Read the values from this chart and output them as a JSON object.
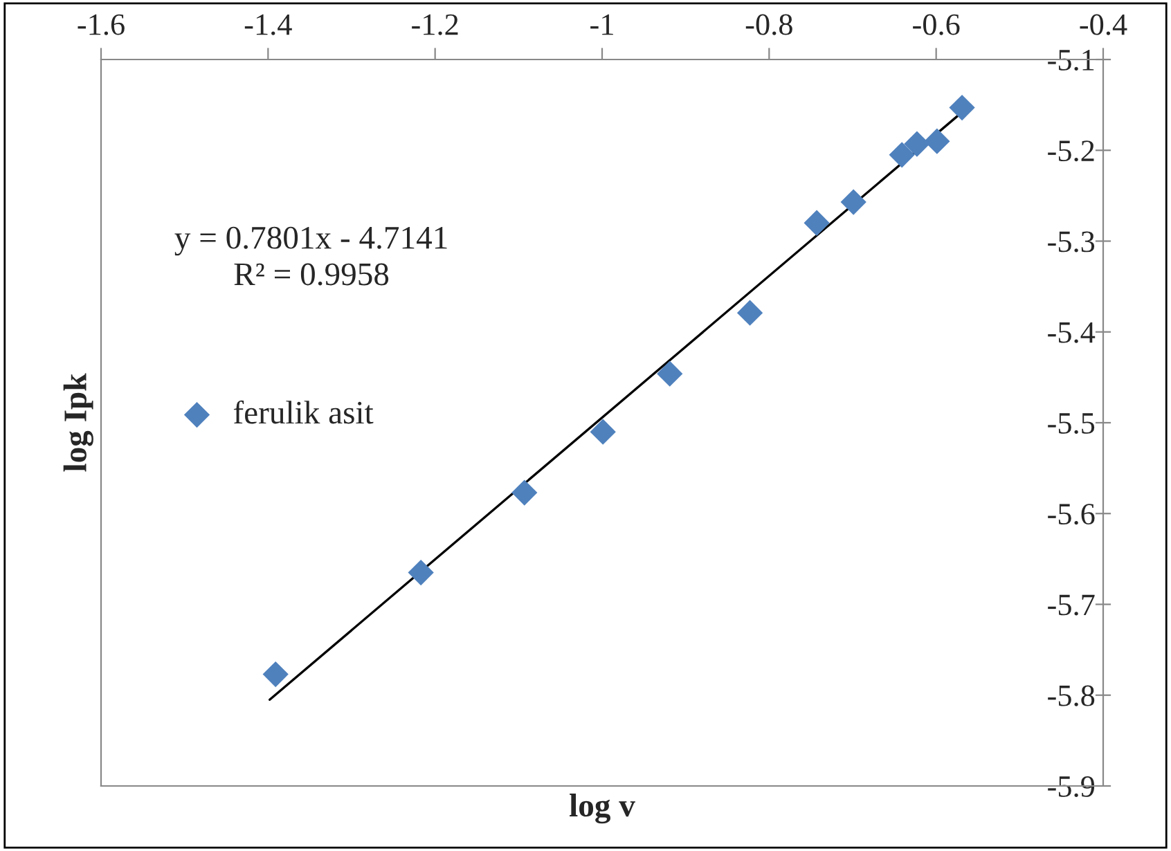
{
  "chart_data": {
    "type": "scatter",
    "xlabel": "log v",
    "ylabel": "log Ipk",
    "xlim": [
      -1.6,
      -0.4
    ],
    "xticks": [
      -1.6,
      -1.4,
      -1.2,
      -1,
      -0.8,
      -0.6,
      -0.4
    ],
    "ylim": [
      -5.9,
      -5.1
    ],
    "yticks": [
      -5.9,
      -5.8,
      -5.7,
      -5.6,
      -5.5,
      -5.4,
      -5.3,
      -5.2,
      -5.1
    ],
    "grid": false,
    "legend": "left",
    "annotations": [
      "y = 0.7801x - 4.7141",
      "R² = 0.9958"
    ],
    "series": [
      {
        "name": "ferulik asit",
        "color": "#4f81bd",
        "marker": "diamond",
        "x": [
          -1.391,
          -1.217,
          -1.093,
          -0.999,
          -0.919,
          -0.823,
          -0.743,
          -0.699,
          -0.641,
          -0.623,
          -0.599,
          -0.569
        ],
        "values": [
          -5.777,
          -5.665,
          -5.577,
          -5.51,
          -5.446,
          -5.379,
          -5.28,
          -5.257,
          -5.205,
          -5.193,
          -5.19,
          -5.153
        ]
      },
      {
        "type": "line",
        "color": "#000000",
        "x": [
          -1.398,
          -0.569
        ],
        "values": [
          -5.805,
          -5.158
        ]
      }
    ]
  }
}
